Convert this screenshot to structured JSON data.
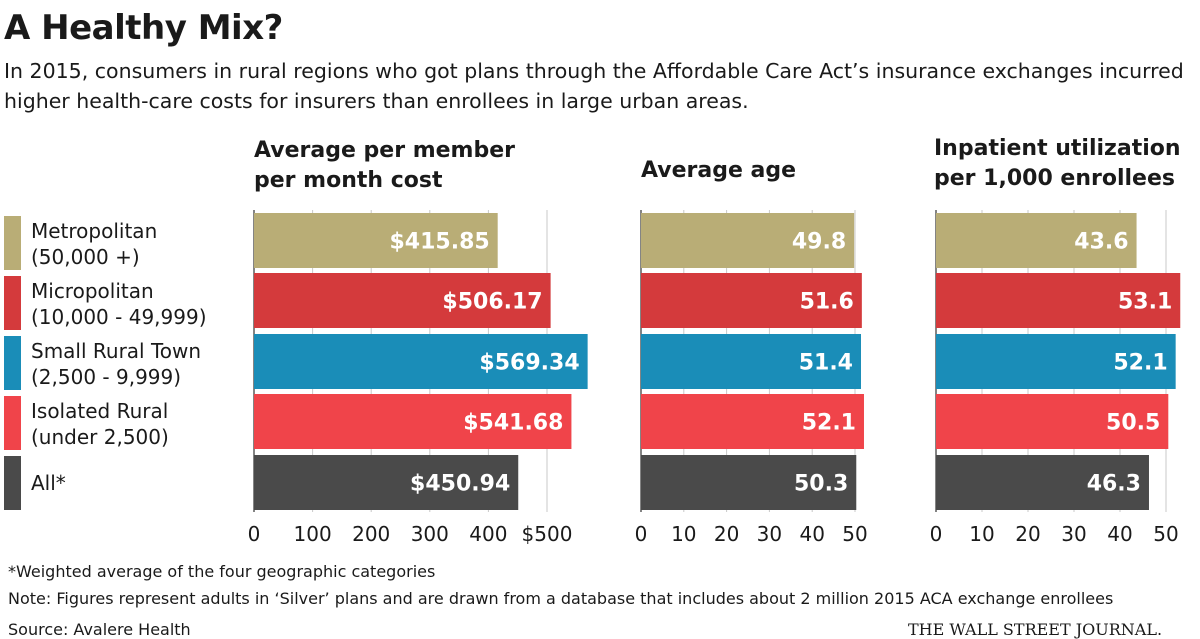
{
  "header": {
    "title": "A Healthy Mix?",
    "subtitle": "In 2015, consumers in rural regions who got plans through the Affordable Care Act’s insurance exchanges incurred higher health-care costs for insurers than enrollees in large urban areas."
  },
  "legend": [
    {
      "label": "Metropolitan\n(50,000 +)",
      "color": "#b9ad76"
    },
    {
      "label": "Micropolitan\n(10,000 - 49,999)",
      "color": "#d43a3c"
    },
    {
      "label": "Small Rural Town\n(2,500 - 9,999)",
      "color": "#1a8db8"
    },
    {
      "label": "Isolated Rural\n(under 2,500)",
      "color": "#f0444a"
    },
    {
      "label": "All*",
      "color": "#4a4a4a"
    }
  ],
  "chart_data": [
    {
      "type": "bar",
      "orientation": "horizontal",
      "title": "Average per member\nper month cost",
      "categories": [
        "Metropolitan (50,000 +)",
        "Micropolitan (10,000 - 49,999)",
        "Small Rural Town (2,500 - 9,999)",
        "Isolated Rural (under 2,500)",
        "All*"
      ],
      "values": [
        415.85,
        506.17,
        569.34,
        541.68,
        450.94
      ],
      "value_labels": [
        "$415.85",
        "$506.17",
        "$569.34",
        "$541.68",
        "$450.94"
      ],
      "xlim": [
        0,
        500
      ],
      "xticks": [
        0,
        100,
        200,
        300,
        400,
        500
      ],
      "xtick_labels": [
        "0",
        "100",
        "200",
        "300",
        "400",
        "$500"
      ]
    },
    {
      "type": "bar",
      "orientation": "horizontal",
      "title": "Average age",
      "categories": [
        "Metropolitan (50,000 +)",
        "Micropolitan (10,000 - 49,999)",
        "Small Rural Town (2,500 - 9,999)",
        "Isolated Rural (under 2,500)",
        "All*"
      ],
      "values": [
        49.8,
        51.6,
        51.4,
        52.1,
        50.3
      ],
      "value_labels": [
        "49.8",
        "51.6",
        "51.4",
        "52.1",
        "50.3"
      ],
      "xlim": [
        0,
        50
      ],
      "xticks": [
        0,
        10,
        20,
        30,
        40,
        50
      ],
      "xtick_labels": [
        "0",
        "10",
        "20",
        "30",
        "40",
        "50"
      ]
    },
    {
      "type": "bar",
      "orientation": "horizontal",
      "title": "Inpatient utilization\nper 1,000 enrollees",
      "categories": [
        "Metropolitan (50,000 +)",
        "Micropolitan (10,000 - 49,999)",
        "Small Rural Town (2,500 - 9,999)",
        "Isolated Rural (under 2,500)",
        "All*"
      ],
      "values": [
        43.6,
        53.1,
        52.1,
        50.5,
        46.3
      ],
      "value_labels": [
        "43.6",
        "53.1",
        "52.1",
        "50.5",
        "46.3"
      ],
      "xlim": [
        0,
        50
      ],
      "xticks": [
        0,
        10,
        20,
        30,
        40,
        50
      ],
      "xtick_labels": [
        "0",
        "10",
        "20",
        "30",
        "40",
        "50"
      ]
    }
  ],
  "notes": {
    "footnote": "*Weighted average of the four geographic categories",
    "note": "Note: Figures represent adults in ‘Silver’ plans and are drawn from a database that includes about 2 million 2015 ACA exchange enrollees",
    "source": "Source: Avalere Health",
    "credit": "THE WALL STREET JOURNAL."
  }
}
